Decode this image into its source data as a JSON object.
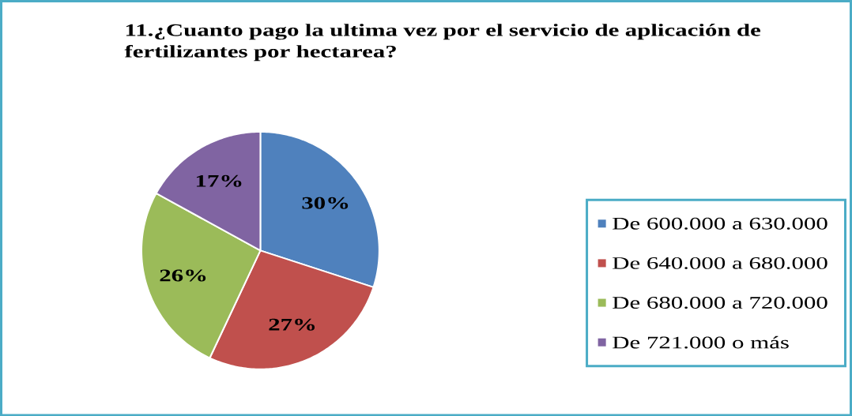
{
  "chart_data": {
    "type": "pie",
    "title": "11.¿Cuanto pago la ultima vez por el servicio de aplicación de fertilizantes por hectarea?",
    "categories": [
      "De 600.000 a 630.000",
      "De 640.000 a 680.000",
      "De 680.000 a 720.000",
      "De 721.000 o más"
    ],
    "values": [
      30,
      27,
      26,
      17
    ],
    "colors": [
      "#4f81bd",
      "#c0504d",
      "#9bbb59",
      "#8064a2"
    ],
    "value_labels": [
      "30%",
      "27%",
      "26%",
      "17%"
    ],
    "legend": "right"
  }
}
